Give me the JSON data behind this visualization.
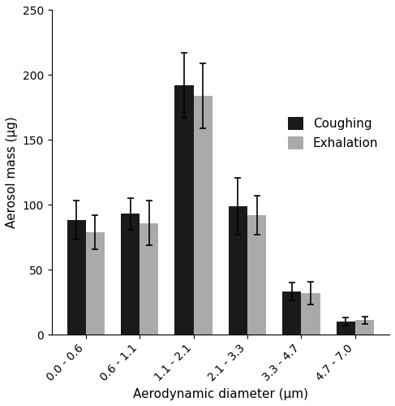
{
  "categories": [
    "0.0 - 0.6",
    "0.6 - 1.1",
    "1.1 - 2.1",
    "2.1 - 3.3",
    "3.3 - 4.7",
    "4.7 - 7.0"
  ],
  "coughing_values": [
    88,
    93,
    192,
    99,
    33,
    10
  ],
  "coughing_errors": [
    15,
    12,
    25,
    22,
    7,
    3
  ],
  "exhalation_values": [
    79,
    86,
    184,
    92,
    32,
    11
  ],
  "exhalation_errors": [
    13,
    17,
    25,
    15,
    9,
    3
  ],
  "bar_color_coughing": "#1a1a1a",
  "bar_color_exhalation": "#aaaaaa",
  "ylabel": "Aerosol mass (µg)",
  "xlabel": "Aerodynamic diameter (µm)",
  "ylim": [
    0,
    250
  ],
  "yticks": [
    0,
    50,
    100,
    150,
    200,
    250
  ],
  "legend_labels": [
    "Coughing",
    "Exhalation"
  ],
  "bar_width": 0.35,
  "figsize": [
    4.87,
    5.0
  ],
  "dpi": 100
}
